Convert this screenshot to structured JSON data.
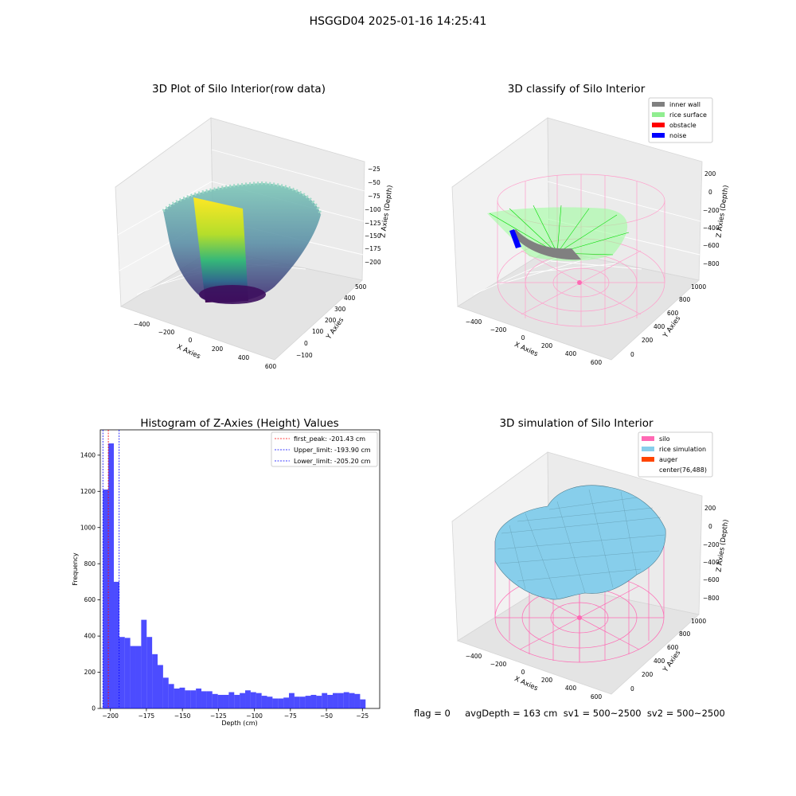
{
  "suptitle": "HSGGD04 2025-01-16 14:25:41",
  "footer": "flag = 0     avgDepth = 163 cm  sv1 = 500~2500  sv2 = 500~2500",
  "chart_data": [
    {
      "type": "scatter",
      "title": "3D Plot of Silo Interior(row data)",
      "xlabel": "X Axies",
      "ylabel": "Y Axies",
      "zlabel": "Z Axies (Depth)",
      "x_ticks": [
        "−400",
        "−200",
        "0",
        "200",
        "400",
        "600"
      ],
      "y_ticks": [
        "−100",
        "0",
        "100",
        "200",
        "300",
        "400",
        "500"
      ],
      "z_ticks": [
        "−25",
        "−50",
        "−75",
        "−100",
        "−125",
        "−150",
        "−175",
        "−200"
      ],
      "colormap": [
        "#440154",
        "#3b528b",
        "#21918c",
        "#5ec962",
        "#fde725"
      ]
    },
    {
      "type": "scatter",
      "title": "3D classify of Silo Interior",
      "x_ticks": [
        "−400",
        "−200",
        "0",
        "200",
        "400",
        "600"
      ],
      "y_ticks": [
        "0",
        "200",
        "400",
        "600",
        "800",
        "1000"
      ],
      "z_ticks": [
        "200",
        "0",
        "−200",
        "−400",
        "−600",
        "−800"
      ],
      "xlabel": "X Axies",
      "ylabel": "Y Axies",
      "zlabel": "Z Axies (Depth)",
      "legend": [
        {
          "label": "inner wall",
          "color": "#808080"
        },
        {
          "label": "rice surface",
          "color": "#90ee90"
        },
        {
          "label": "obstacle",
          "color": "#ff0000"
        },
        {
          "label": "noise",
          "color": "#0000ff"
        }
      ]
    },
    {
      "type": "bar",
      "title": "Histogram of Z-Axies (Height) Values",
      "xlabel": "Depth (cm)",
      "ylabel": "Frequency",
      "xlim": [
        -207,
        -13
      ],
      "ylim": [
        0,
        1540
      ],
      "x_ticks": [
        -200,
        -175,
        -150,
        -125,
        -100,
        -75,
        -50,
        -25
      ],
      "x_tick_labels": [
        "−200",
        "−175",
        "−150",
        "−125",
        "−100",
        "−75",
        "−50",
        "−25"
      ],
      "y_ticks": [
        0,
        200,
        400,
        600,
        800,
        1000,
        1200,
        1400
      ],
      "bin_start": -205.2,
      "bin_width": 3.8,
      "values": [
        1210,
        1465,
        700,
        395,
        390,
        345,
        345,
        490,
        395,
        300,
        240,
        170,
        135,
        110,
        115,
        100,
        100,
        110,
        95,
        95,
        80,
        75,
        75,
        90,
        75,
        85,
        100,
        90,
        85,
        70,
        65,
        55,
        55,
        60,
        85,
        65,
        65,
        70,
        75,
        70,
        85,
        75,
        85,
        85,
        90,
        85,
        80,
        50
      ],
      "bar_color": "#0000ff",
      "vlines": [
        {
          "label": "first_peak: -201.43 cm",
          "x": -201.43,
          "color": "#ff0000"
        },
        {
          "label": "Upper_limit: -193.90 cm",
          "x": -193.9,
          "color": "#0000ff"
        },
        {
          "label": "Lower_limit: -205.20 cm",
          "x": -205.2,
          "color": "#0000ff"
        }
      ],
      "legend_position": "top-right"
    },
    {
      "type": "surface",
      "title": "3D simulation of Silo Interior",
      "xlabel": "X Axies",
      "ylabel": "Y Axies",
      "zlabel": "Z Axies (Depth)",
      "x_ticks": [
        "−400",
        "−200",
        "0",
        "200",
        "400",
        "600"
      ],
      "y_ticks": [
        "0",
        "200",
        "400",
        "600",
        "800",
        "1000"
      ],
      "z_ticks": [
        "200",
        "0",
        "−200",
        "−400",
        "−600",
        "−800"
      ],
      "legend": [
        {
          "label": "silo",
          "color": "#ff69b4"
        },
        {
          "label": "rice simulation",
          "color": "#87ceeb"
        },
        {
          "label": "auger",
          "color": "#ff4500"
        },
        {
          "label": "center(76,488)",
          "color": ""
        }
      ]
    }
  ]
}
